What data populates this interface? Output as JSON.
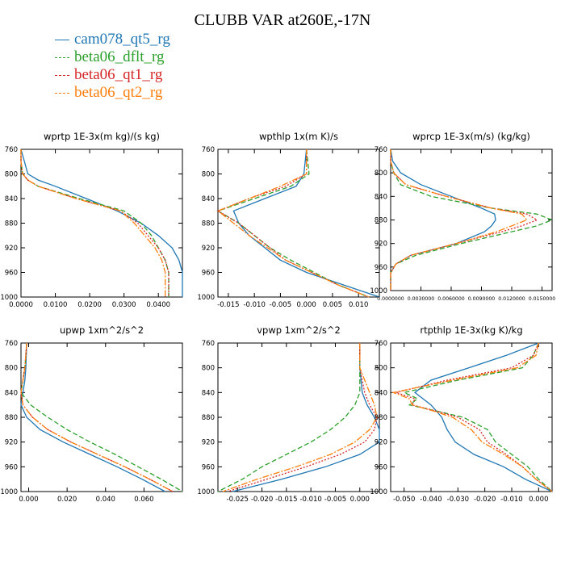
{
  "page": {
    "title": "CLUBB VAR at260E,-17N"
  },
  "legend": [
    {
      "name": "cam078_qt5_rg",
      "color": "#1f77b4",
      "dash": ""
    },
    {
      "name": "beta06_dflt_rg",
      "color": "#2ca02c",
      "dash": "6,3"
    },
    {
      "name": "beta06_qt1_rg",
      "color": "#d62728",
      "dash": "2,2"
    },
    {
      "name": "beta06_qt2_rg",
      "color": "#ff7f0e",
      "dash": "8,2,2,2"
    }
  ],
  "chart_data": [
    {
      "type": "line",
      "title": "wprtp  1E-3x(m kg)/(s kg)",
      "xlim": [
        0,
        0.047
      ],
      "ylim": [
        760,
        1000
      ],
      "xticks": [
        0,
        0.01,
        0.02,
        0.03,
        0.04
      ],
      "xtick_labels": [
        "0.0000",
        "0.0100",
        "0.0200",
        "0.0300",
        "0.0400"
      ],
      "yticks": [
        760,
        800,
        840,
        880,
        920,
        960,
        1000
      ],
      "ytick_labels": [
        "760",
        "800",
        "840",
        "880",
        "920",
        "960",
        "1000"
      ],
      "y": [
        760,
        780,
        800,
        810,
        820,
        840,
        860,
        880,
        900,
        920,
        940,
        960,
        980,
        1000
      ],
      "series": [
        {
          "values": [
            0,
            0.001,
            0.002,
            0.005,
            0.01,
            0.019,
            0.028,
            0.035,
            0.04,
            0.044,
            0.046,
            0.047,
            0.047,
            0.047
          ]
        },
        {
          "values": [
            0,
            0,
            0.0005,
            0.002,
            0.005,
            0.017,
            0.03,
            0.035,
            0.038,
            0.04,
            0.042,
            0.043,
            0.043,
            0.043
          ]
        },
        {
          "values": [
            0,
            0,
            0.0005,
            0.002,
            0.005,
            0.016,
            0.029,
            0.034,
            0.037,
            0.04,
            0.042,
            0.043,
            0.043,
            0.043
          ]
        },
        {
          "values": [
            0,
            0,
            0.0005,
            0.002,
            0.005,
            0.016,
            0.029,
            0.033,
            0.036,
            0.039,
            0.041,
            0.042,
            0.042,
            0.042
          ]
        }
      ]
    },
    {
      "type": "line",
      "title": "wpthlp  1x(m K)/s",
      "xlim": [
        -0.017,
        0.014
      ],
      "ylim": [
        760,
        1000
      ],
      "xticks": [
        -0.015,
        -0.01,
        -0.005,
        0,
        0.005,
        0.01
      ],
      "xtick_labels": [
        "-0.015",
        "-0.010",
        "-0.005",
        "0.000",
        "0.005",
        "0.010"
      ],
      "yticks": [
        760,
        800,
        840,
        880,
        920,
        960,
        1000
      ],
      "ytick_labels": [
        "760",
        "800",
        "840",
        "880",
        "920",
        "960",
        "1000"
      ],
      "y": [
        760,
        800,
        820,
        840,
        860,
        880,
        900,
        920,
        940,
        960,
        980,
        1000
      ],
      "series": [
        {
          "values": [
            0,
            -0.0005,
            -0.002,
            -0.008,
            -0.014,
            -0.013,
            -0.011,
            -0.008,
            -0.005,
            0.0,
            0.007,
            0.014
          ]
        },
        {
          "values": [
            0,
            0.0005,
            -0.003,
            -0.01,
            -0.017,
            -0.013,
            -0.01,
            -0.007,
            -0.003,
            0.0015,
            0.006,
            0.012
          ]
        },
        {
          "values": [
            0,
            0.0,
            -0.004,
            -0.011,
            -0.017,
            -0.013,
            -0.01,
            -0.007,
            -0.004,
            0.001,
            0.006,
            0.012
          ]
        },
        {
          "values": [
            0,
            0.0,
            -0.005,
            -0.011,
            -0.017,
            -0.014,
            -0.011,
            -0.0075,
            -0.004,
            0.001,
            0.006,
            0.012
          ]
        }
      ]
    },
    {
      "type": "line",
      "title": "wprcp  1E-3x(m/s) (kg/kg)",
      "xlim": [
        0,
        0.016
      ],
      "ylim": [
        760,
        1000
      ],
      "xticks": [
        0,
        0.003,
        0.006,
        0.009,
        0.012,
        0.015
      ],
      "xtick_labels": [
        "0.0000000",
        "0.0030000",
        "0.0060000",
        "0.0090000",
        "0.0120000",
        "0.0150000"
      ],
      "yticks": [
        760,
        800,
        840,
        880,
        920,
        960,
        1000
      ],
      "ytick_labels": [
        "760",
        "800",
        "840",
        "880",
        "920",
        "960",
        "1000"
      ],
      "y": [
        760,
        780,
        800,
        820,
        840,
        860,
        870,
        880,
        890,
        900,
        920,
        940,
        955,
        970,
        1000
      ],
      "series": [
        {
          "values": [
            0,
            0.0002,
            0.001,
            0.003,
            0.006,
            0.009,
            0.0103,
            0.0104,
            0.01,
            0.0093,
            0.0065,
            0.002,
            0.0005,
            0.0,
            0.0
          ]
        },
        {
          "values": [
            0,
            0,
            0.0003,
            0.001,
            0.004,
            0.01,
            0.0145,
            0.016,
            0.0145,
            0.012,
            0.007,
            0.0025,
            0.0005,
            0.0,
            0.0
          ]
        },
        {
          "values": [
            0,
            0,
            0.0003,
            0.0015,
            0.0055,
            0.01,
            0.0135,
            0.0145,
            0.013,
            0.011,
            0.0065,
            0.002,
            0.0005,
            0.0,
            0.0
          ]
        },
        {
          "values": [
            0,
            0,
            0.0003,
            0.0015,
            0.0055,
            0.01,
            0.013,
            0.0135,
            0.012,
            0.0105,
            0.0065,
            0.002,
            0.0005,
            0.0,
            0.0
          ]
        }
      ]
    },
    {
      "type": "line",
      "title": "upwp  1xm^2/s^2",
      "xlim": [
        -0.004,
        0.08
      ],
      "ylim": [
        760,
        1000
      ],
      "xticks": [
        0,
        0.02,
        0.04,
        0.06
      ],
      "xtick_labels": [
        "0.000",
        "0.020",
        "0.040",
        "0.060"
      ],
      "yticks": [
        760,
        800,
        840,
        880,
        920,
        960,
        1000
      ],
      "ytick_labels": [
        "760",
        "800",
        "840",
        "880",
        "920",
        "960",
        "1000"
      ],
      "y": [
        760,
        800,
        820,
        840,
        860,
        880,
        900,
        920,
        940,
        960,
        980,
        1000
      ],
      "series": [
        {
          "values": [
            -0.001,
            -0.0015,
            -0.002,
            -0.003,
            -0.004,
            -0.001,
            0.006,
            0.018,
            0.032,
            0.046,
            0.059,
            0.071
          ]
        },
        {
          "values": [
            -0.001,
            -0.002,
            -0.003,
            -0.004,
            0.001,
            0.01,
            0.02,
            0.032,
            0.045,
            0.057,
            0.069,
            0.08
          ]
        },
        {
          "values": [
            -0.001,
            -0.002,
            -0.003,
            -0.004,
            -0.003,
            0.002,
            0.01,
            0.022,
            0.036,
            0.05,
            0.063,
            0.075
          ]
        },
        {
          "values": [
            -0.001,
            -0.002,
            -0.003,
            -0.004,
            -0.003,
            0.002,
            0.01,
            0.022,
            0.036,
            0.05,
            0.063,
            0.075
          ]
        }
      ]
    },
    {
      "type": "line",
      "title": "vpwp  1xm^2/s^2",
      "xlim": [
        -0.029,
        0.004
      ],
      "ylim": [
        760,
        1000
      ],
      "xticks": [
        -0.025,
        -0.02,
        -0.015,
        -0.01,
        -0.005,
        0
      ],
      "xtick_labels": [
        "-0.025",
        "-0.020",
        "-0.015",
        "-0.010",
        "-0.005",
        "0.000"
      ],
      "yticks": [
        760,
        800,
        840,
        880,
        920,
        960,
        1000
      ],
      "ytick_labels": [
        "760",
        "800",
        "840",
        "880",
        "920",
        "960",
        "1000"
      ],
      "y": [
        760,
        800,
        840,
        860,
        880,
        900,
        920,
        940,
        960,
        980,
        1000
      ],
      "series": [
        {
          "values": [
            0,
            0,
            0.0005,
            0.0015,
            0.003,
            0.004,
            0.004,
            0.0,
            -0.007,
            -0.016,
            -0.026
          ]
        },
        {
          "values": [
            0,
            0,
            0.0,
            -0.001,
            -0.003,
            -0.006,
            -0.01,
            -0.015,
            -0.02,
            -0.024,
            -0.029
          ]
        },
        {
          "values": [
            0,
            0,
            0.001,
            0.002,
            0.0035,
            0.003,
            0.001,
            -0.004,
            -0.011,
            -0.019,
            -0.027
          ]
        },
        {
          "values": [
            0,
            0,
            0.002,
            0.003,
            0.0035,
            0.002,
            -0.001,
            -0.006,
            -0.013,
            -0.021,
            -0.028
          ]
        }
      ]
    },
    {
      "type": "line",
      "title": "rtpthlp  1E-3x(kg K)/kg",
      "xlim": [
        -0.055,
        0.005
      ],
      "ylim": [
        760,
        1000
      ],
      "xticks": [
        -0.05,
        -0.04,
        -0.03,
        -0.02,
        -0.01,
        0
      ],
      "xtick_labels": [
        "-0.050",
        "-0.040",
        "-0.030",
        "-0.020",
        "-0.010",
        "0.000"
      ],
      "yticks": [
        760,
        800,
        840,
        880,
        920,
        960,
        1000
      ],
      "ytick_labels": [
        "760",
        "800",
        "840",
        "880",
        "920",
        "960",
        "1000"
      ],
      "y": [
        760,
        780,
        800,
        820,
        840,
        850,
        860,
        870,
        880,
        900,
        920,
        940,
        960,
        980,
        1000
      ],
      "series": [
        {
          "values": [
            0,
            -0.012,
            -0.026,
            -0.04,
            -0.046,
            -0.043,
            -0.04,
            -0.038,
            -0.036,
            -0.034,
            -0.031,
            -0.024,
            -0.013,
            -0.005,
            0.005
          ]
        },
        {
          "values": [
            0,
            -0.002,
            -0.006,
            -0.03,
            -0.05,
            -0.045,
            -0.048,
            -0.038,
            -0.028,
            -0.019,
            -0.016,
            -0.01,
            -0.004,
            0,
            0.005
          ]
        },
        {
          "values": [
            0,
            -0.002,
            -0.01,
            -0.034,
            -0.053,
            -0.046,
            -0.047,
            -0.038,
            -0.03,
            -0.022,
            -0.019,
            -0.012,
            -0.006,
            -0.001,
            0.005
          ]
        },
        {
          "values": [
            0,
            -0.001,
            -0.008,
            -0.032,
            -0.054,
            -0.048,
            -0.047,
            -0.039,
            -0.032,
            -0.025,
            -0.021,
            -0.013,
            -0.006,
            -0.001,
            0.005
          ]
        }
      ]
    }
  ]
}
